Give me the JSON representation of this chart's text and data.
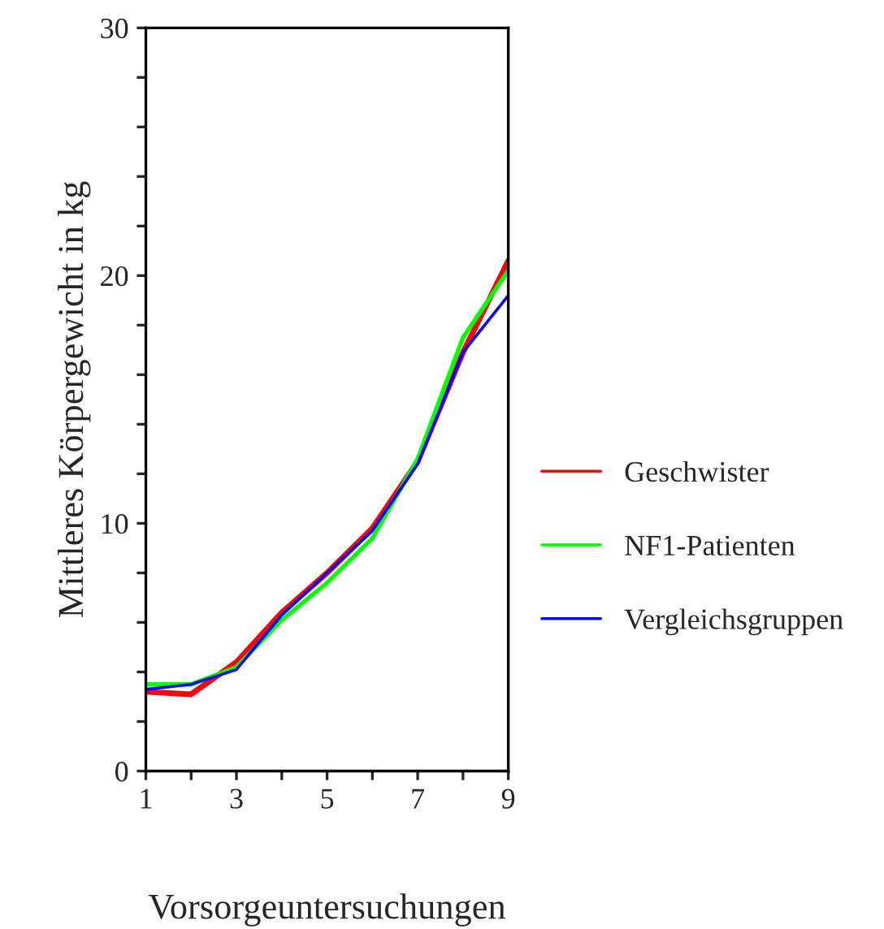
{
  "chart_data": {
    "type": "line",
    "xlabel": "Vorsorgeuntersuchungen",
    "ylabel": "Mittleres Körpergewicht in kg",
    "x": [
      1,
      2,
      3,
      4,
      5,
      6,
      7,
      8,
      9
    ],
    "series": [
      {
        "name": "Geschwister",
        "color": "#ff0000",
        "values": [
          3.2,
          3.1,
          4.4,
          6.4,
          8.0,
          9.8,
          12.5,
          16.9,
          20.6
        ]
      },
      {
        "name": "NF1-Patienten",
        "color": "#00ff00",
        "values": [
          3.5,
          3.5,
          4.2,
          6.1,
          7.6,
          9.4,
          12.6,
          17.5,
          20.2
        ]
      },
      {
        "name": "Vergleichsgruppen",
        "color": "#0000ff",
        "values": [
          3.3,
          3.5,
          4.1,
          6.3,
          8.0,
          9.7,
          12.4,
          16.9,
          19.2
        ]
      }
    ],
    "xlim": [
      1,
      9
    ],
    "xticks": [
      1,
      {
        "value": 2,
        "label": null
      },
      3,
      {
        "value": 4,
        "label": null
      },
      5,
      {
        "value": 6,
        "label": null
      },
      7,
      {
        "value": 8,
        "label": null
      },
      9
    ],
    "ylim": [
      0,
      30
    ],
    "yticks": [
      0,
      {
        "value": 2,
        "label": null
      },
      {
        "value": 4,
        "label": null
      },
      {
        "value": 6,
        "label": null
      },
      {
        "value": 8,
        "label": null
      },
      10,
      {
        "value": 12,
        "label": null
      },
      {
        "value": 14,
        "label": null
      },
      {
        "value": 16,
        "label": null
      },
      {
        "value": 18,
        "label": null
      },
      20,
      {
        "value": 22,
        "label": null
      },
      {
        "value": 24,
        "label": null
      },
      {
        "value": 26,
        "label": null
      },
      {
        "value": 28,
        "label": null
      },
      30
    ],
    "grid": false,
    "legend": "right",
    "marker": "none",
    "line_style": "solid"
  }
}
